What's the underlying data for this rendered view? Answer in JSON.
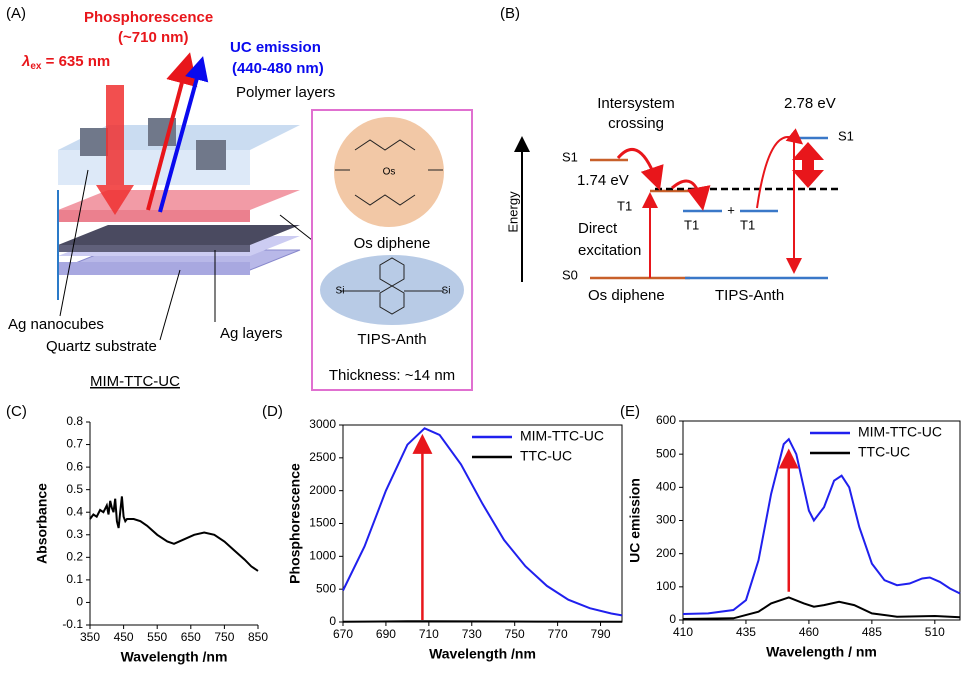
{
  "panel_a": {
    "label": "(A)",
    "phosphorescence": "Phosphorescence",
    "phosphorescence_range": "(~710 nm)",
    "uc_emission": "UC emission",
    "uc_range": "(440-480 nm)",
    "excitation": {
      "symbol": "λ",
      "sub": "ex",
      "text": " = 635 nm"
    },
    "polymer_layers": "Polymer layers",
    "ag_nanocubes": "Ag nanocubes",
    "quartz_substrate": "Quartz substrate",
    "ag_layers": "Ag layers",
    "device": "MIM-TTC-UC",
    "sensitizer": "Os diphene",
    "sensitizer_atom": "Os",
    "annihilator": "TIPS-Anth",
    "annihilator_atom": "Si",
    "thickness": "Thickness: ~14 nm"
  },
  "panel_b": {
    "label": "(B)",
    "isc": [
      "Intersystem",
      "crossing"
    ],
    "s1_energy": "2.78 eV",
    "t1_energy": "1.74 eV",
    "os_s1": "S1",
    "os_t1": "T1",
    "os_s0": "S0",
    "anth_t1_a": "T1",
    "plus": "+",
    "anth_t1_b": "T1",
    "anth_s1": "S1",
    "energy": "Energy",
    "direct": [
      "Direct",
      "excitation"
    ],
    "sensitizer": "Os diphene",
    "annihilator": "TIPS-Anth"
  },
  "chart_data": [
    {
      "type": "line",
      "label": "(C)",
      "xlabel": "Wavelength /nm",
      "ylabel": "Absorbance",
      "box": false,
      "xlim": [
        350,
        850
      ],
      "xticks": [
        350,
        450,
        550,
        650,
        750,
        850
      ],
      "ylim": [
        -0.1,
        0.8
      ],
      "yticks": [
        -0.1,
        0,
        0.1,
        0.2,
        0.3,
        0.4,
        0.5,
        0.6,
        0.7,
        0.8
      ],
      "series": [
        {
          "color": "#000000",
          "x": [
            350,
            360,
            370,
            380,
            390,
            400,
            405,
            410,
            415,
            420,
            425,
            430,
            435,
            440,
            445,
            450,
            455,
            460,
            480,
            500,
            520,
            550,
            580,
            600,
            630,
            660,
            690,
            720,
            750,
            780,
            810,
            830,
            850
          ],
          "values": [
            0.37,
            0.39,
            0.38,
            0.41,
            0.4,
            0.43,
            0.39,
            0.45,
            0.42,
            0.4,
            0.46,
            0.36,
            0.33,
            0.4,
            0.47,
            0.38,
            0.36,
            0.37,
            0.37,
            0.36,
            0.34,
            0.3,
            0.27,
            0.26,
            0.28,
            0.3,
            0.31,
            0.3,
            0.27,
            0.23,
            0.19,
            0.16,
            0.14
          ]
        }
      ]
    },
    {
      "type": "line",
      "label": "(D)",
      "xlabel": "Wavelength /nm",
      "ylabel": "Phosphorescence",
      "box": true,
      "legend": "upper right",
      "xlim": [
        670,
        800
      ],
      "xticks": [
        670,
        690,
        710,
        730,
        750,
        770,
        790
      ],
      "ylim": [
        0,
        3000
      ],
      "yticks": [
        0,
        500,
        1000,
        1500,
        2000,
        2500,
        3000
      ],
      "arrow": {
        "x": 707,
        "from": 30,
        "to": 2880,
        "color": "#e8161b"
      },
      "series": [
        {
          "name": "MIM-TTC-UC",
          "color": "#2020ee",
          "x": [
            670,
            680,
            690,
            700,
            708,
            715,
            725,
            735,
            745,
            755,
            765,
            775,
            785,
            795,
            800
          ],
          "values": [
            480,
            1150,
            2000,
            2700,
            2950,
            2850,
            2400,
            1800,
            1250,
            850,
            550,
            340,
            210,
            130,
            100
          ]
        },
        {
          "name": "TTC-UC",
          "color": "#000000",
          "x": [
            670,
            700,
            708,
            730,
            760,
            800
          ],
          "values": [
            5,
            10,
            12,
            9,
            6,
            4
          ]
        }
      ]
    },
    {
      "type": "line",
      "label": "(E)",
      "xlabel": "Wavelength / nm",
      "ylabel": "UC emission",
      "box": true,
      "legend": "upper right",
      "xlim": [
        410,
        520
      ],
      "xticks": [
        410,
        435,
        460,
        485,
        510
      ],
      "ylim": [
        0,
        600
      ],
      "yticks": [
        0,
        100,
        200,
        300,
        400,
        500,
        600
      ],
      "arrow": {
        "x": 452,
        "from": 85,
        "to": 520,
        "color": "#e8161b"
      },
      "series": [
        {
          "name": "MIM-TTC-UC",
          "color": "#2020ee",
          "x": [
            410,
            420,
            430,
            435,
            440,
            445,
            450,
            452,
            455,
            460,
            462,
            466,
            470,
            473,
            476,
            480,
            485,
            490,
            495,
            500,
            505,
            508,
            512,
            516,
            520
          ],
          "values": [
            18,
            20,
            30,
            60,
            180,
            380,
            530,
            545,
            500,
            330,
            300,
            340,
            420,
            435,
            400,
            280,
            170,
            120,
            105,
            110,
            125,
            128,
            115,
            95,
            80
          ]
        },
        {
          "name": "TTC-UC",
          "color": "#000000",
          "x": [
            410,
            430,
            440,
            445,
            452,
            458,
            462,
            466,
            472,
            478,
            485,
            495,
            510,
            520
          ],
          "values": [
            3,
            5,
            25,
            50,
            68,
            50,
            40,
            45,
            55,
            45,
            20,
            10,
            12,
            8
          ]
        }
      ]
    }
  ]
}
